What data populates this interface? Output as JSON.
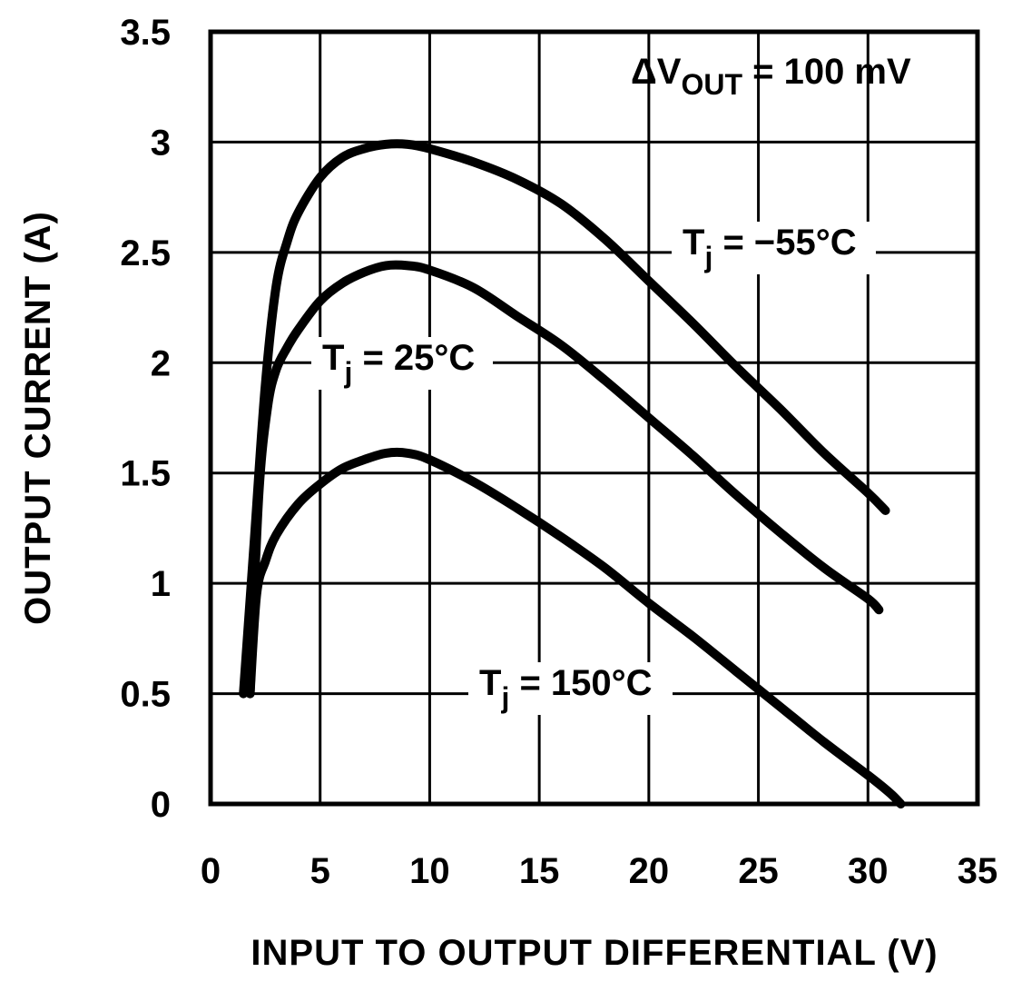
{
  "chart_data": {
    "type": "line",
    "xlabel": "INPUT TO OUTPUT DIFFERENTIAL (V)",
    "ylabel": "OUTPUT CURRENT (A)",
    "xlim": [
      0,
      35
    ],
    "ylim": [
      0,
      3.5
    ],
    "x_ticks": [
      "0",
      "5",
      "10",
      "15",
      "20",
      "25",
      "30",
      "35"
    ],
    "y_ticks": [
      "0",
      "0.5",
      "1",
      "1.5",
      "2",
      "2.5",
      "3",
      "3.5"
    ],
    "grid": true,
    "annotation": {
      "prefix": "ΔV",
      "subscript": "OUT",
      "suffix": " = 100 mV"
    },
    "series": [
      {
        "name": "Tj = −55°C",
        "label": {
          "prefix": "T",
          "subscript": "j",
          "suffix": " = −55°C"
        },
        "x": [
          1.5,
          2.0,
          2.5,
          3.0,
          3.5,
          4.0,
          5.0,
          6.0,
          7.0,
          8.0,
          9.0,
          10.0,
          12.0,
          14.0,
          16.0,
          18.0,
          20.0,
          22.0,
          24.0,
          26.0,
          28.0,
          30.0,
          30.8
        ],
        "y": [
          0.5,
          1.2,
          1.9,
          2.35,
          2.55,
          2.68,
          2.84,
          2.93,
          2.97,
          2.99,
          2.99,
          2.97,
          2.91,
          2.83,
          2.72,
          2.56,
          2.37,
          2.18,
          1.98,
          1.79,
          1.59,
          1.41,
          1.33
        ]
      },
      {
        "name": "Tj = 25°C",
        "label": {
          "prefix": "T",
          "subscript": "j",
          "suffix": " = 25°C"
        },
        "x": [
          1.8,
          2.2,
          2.6,
          3.0,
          3.5,
          4.0,
          5.0,
          6.0,
          7.0,
          8.0,
          9.0,
          10.0,
          12.0,
          14.0,
          16.0,
          18.0,
          20.0,
          22.0,
          24.0,
          26.0,
          28.0,
          30.0,
          30.5
        ],
        "y": [
          0.5,
          1.4,
          1.8,
          1.97,
          2.07,
          2.15,
          2.28,
          2.36,
          2.41,
          2.44,
          2.44,
          2.42,
          2.34,
          2.21,
          2.08,
          1.92,
          1.75,
          1.58,
          1.4,
          1.23,
          1.07,
          0.93,
          0.88
        ]
      },
      {
        "name": "Tj = 150°C",
        "label": {
          "prefix": "T",
          "subscript": "j",
          "suffix": " = 150°C"
        },
        "x": [
          1.8,
          2.1,
          2.5,
          3.0,
          4.0,
          5.0,
          6.0,
          7.0,
          8.0,
          9.0,
          10.0,
          12.0,
          14.0,
          16.0,
          18.0,
          20.0,
          22.0,
          24.0,
          26.0,
          28.0,
          30.0,
          31.0,
          31.5
        ],
        "y": [
          0.5,
          0.95,
          1.1,
          1.22,
          1.36,
          1.45,
          1.52,
          1.56,
          1.59,
          1.59,
          1.56,
          1.46,
          1.34,
          1.21,
          1.07,
          0.91,
          0.76,
          0.6,
          0.44,
          0.28,
          0.13,
          0.05,
          0.0
        ]
      }
    ]
  }
}
